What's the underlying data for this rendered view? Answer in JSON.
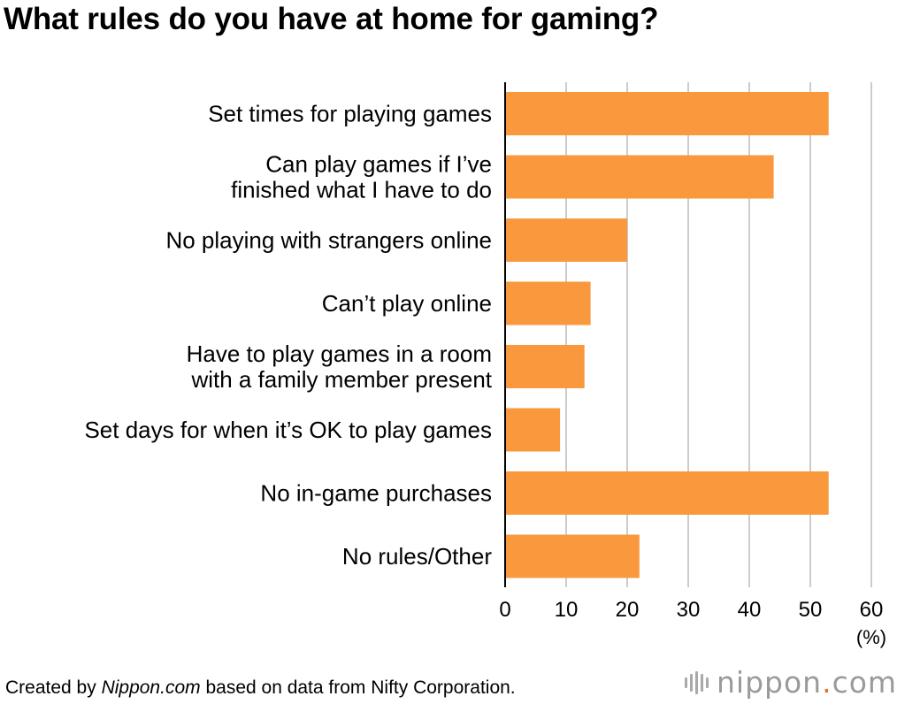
{
  "title": "What rules do you have at home for gaming?",
  "source": {
    "prefix": "Created by ",
    "site": "Nippon.com",
    "suffix": " based on data from Nifty Corporation."
  },
  "logo": {
    "name": "nippon",
    "dot": ".",
    "tld": "com"
  },
  "colors": {
    "bar": "#f9983c",
    "grid": "#cccccc",
    "axis": "#000000"
  },
  "chart_data": {
    "type": "bar",
    "orientation": "horizontal",
    "categories": [
      [
        "Set times for playing games"
      ],
      [
        "Can play games if I’ve",
        "finished what I have to do"
      ],
      [
        "No playing with strangers online"
      ],
      [
        "Can’t play online"
      ],
      [
        "Have to play games in a room",
        "with a family member present"
      ],
      [
        "Set days for when it’s OK to play games"
      ],
      [
        "No in-game purchases"
      ],
      [
        "No rules/Other"
      ]
    ],
    "values": [
      53,
      44,
      20,
      14,
      13,
      9,
      53,
      22
    ],
    "xlim": [
      0,
      60
    ],
    "xticks": [
      0,
      10,
      20,
      30,
      40,
      50,
      60
    ],
    "unit": "(%)",
    "grid": true,
    "legend": "none"
  }
}
